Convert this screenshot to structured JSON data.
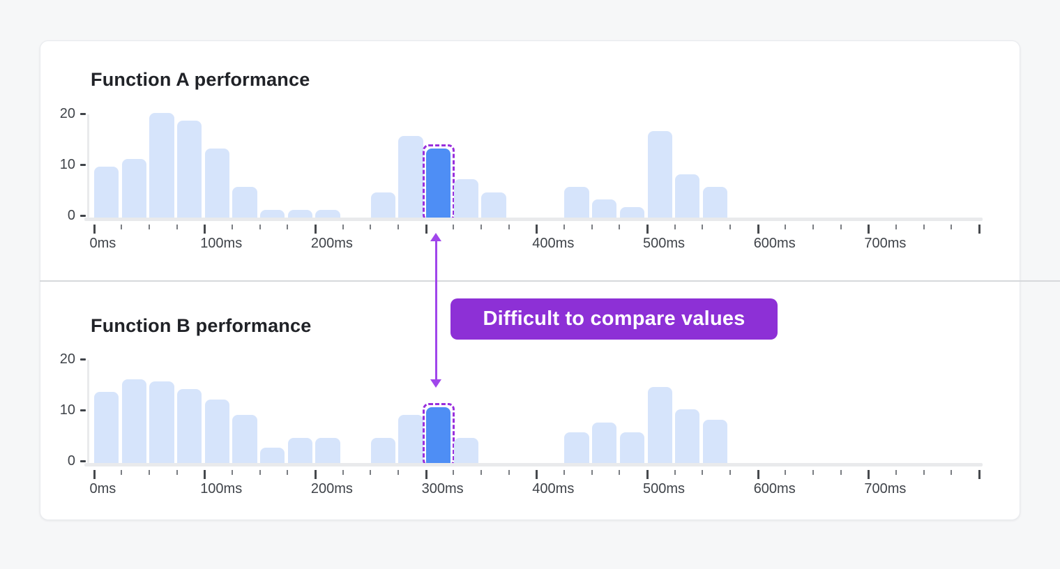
{
  "annotation": {
    "label": "Difficult to compare values"
  },
  "colors": {
    "page_bg": "#f6f7f8",
    "card_bg": "#ffffff",
    "card_border": "#e8eaee",
    "divider": "#d6d8db",
    "title_text": "#202227",
    "axis_text": "#3f4349",
    "tick": "#7b7e83",
    "tick_major": "#46494d",
    "axis_line": "#e9eaec",
    "bar_light": "#d6e4fb",
    "bar_highlight": "#4e8ef5",
    "highlight_outline": "#982fdd",
    "arrow": "#a046eb",
    "badge_bg": "#8d30d6",
    "badge_text": "#ffffff"
  },
  "chart_data": [
    {
      "type": "bar",
      "title": "Function A performance",
      "xlabel": "",
      "ylabel": "",
      "grid": false,
      "legend": null,
      "x_axis": {
        "min_ms": 0,
        "max_ms": 800,
        "tick_step_ms": 25,
        "major_step_ms": 100,
        "unit": "ms"
      },
      "bin_size_ms": 25,
      "y_ticks": [
        0,
        10,
        20
      ],
      "ylim": [
        0,
        21
      ],
      "values": [
        10,
        11.5,
        20.5,
        19,
        13.5,
        6,
        1.5,
        1.5,
        1.5,
        0,
        5,
        16,
        13.5,
        7.5,
        5,
        0,
        0,
        6,
        3.5,
        2,
        17,
        8.5,
        6,
        0,
        0,
        0,
        0,
        0,
        0,
        0,
        0,
        0
      ],
      "x_tick_labels": [
        {
          "ms": 0,
          "label": "0ms"
        },
        {
          "ms": 100,
          "label": "100ms"
        },
        {
          "ms": 200,
          "label": "200ms"
        },
        {
          "ms": 400,
          "label": "400ms"
        },
        {
          "ms": 500,
          "label": "500ms"
        },
        {
          "ms": 600,
          "label": "600ms"
        },
        {
          "ms": 700,
          "label": "700ms"
        }
      ],
      "highlight": {
        "bin_start_ms": 300,
        "bin_end_ms": 325,
        "value": 13.5
      }
    },
    {
      "type": "bar",
      "title": "Function B performance",
      "xlabel": "",
      "ylabel": "",
      "grid": false,
      "legend": null,
      "x_axis": {
        "min_ms": 0,
        "max_ms": 800,
        "tick_step_ms": 25,
        "major_step_ms": 100,
        "unit": "ms"
      },
      "bin_size_ms": 25,
      "y_ticks": [
        0,
        10,
        20
      ],
      "ylim": [
        0,
        21
      ],
      "values": [
        14,
        16.5,
        16,
        14.5,
        12.5,
        9.5,
        3,
        5,
        5,
        0,
        5,
        9.5,
        11,
        5,
        0,
        0,
        0,
        6,
        8,
        6,
        15,
        10.5,
        8.5,
        0,
        0,
        0,
        0,
        0,
        0,
        0,
        0,
        0
      ],
      "x_tick_labels": [
        {
          "ms": 0,
          "label": "0ms"
        },
        {
          "ms": 100,
          "label": "100ms"
        },
        {
          "ms": 200,
          "label": "200ms"
        },
        {
          "ms": 300,
          "label": "300ms"
        },
        {
          "ms": 400,
          "label": "400ms"
        },
        {
          "ms": 500,
          "label": "500ms"
        },
        {
          "ms": 600,
          "label": "600ms"
        },
        {
          "ms": 700,
          "label": "700ms"
        }
      ],
      "highlight": {
        "bin_start_ms": 300,
        "bin_end_ms": 325,
        "value": 11
      }
    }
  ]
}
